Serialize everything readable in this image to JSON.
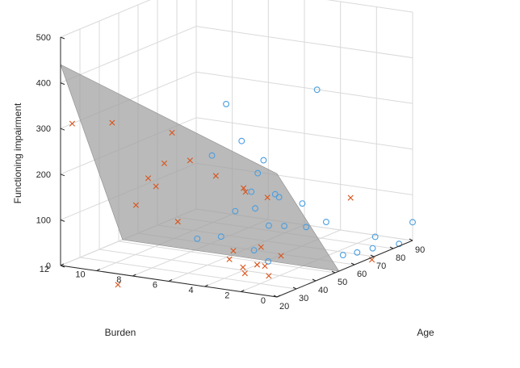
{
  "chart_data": {
    "type": "scatter3d",
    "xlabel": "Age",
    "ylabel": "Burden",
    "zlabel": "Functioning impairment",
    "x_ticks": [
      "20",
      "30",
      "40",
      "50",
      "60",
      "70",
      "80",
      "90"
    ],
    "y_ticks": [
      "0",
      "2",
      "4",
      "6",
      "8",
      "10",
      "12"
    ],
    "z_ticks": [
      "0",
      "100",
      "200",
      "300",
      "400",
      "500"
    ],
    "xlim": [
      20,
      90
    ],
    "ylim": [
      0,
      12
    ],
    "zlim": [
      0,
      500
    ],
    "grid": true,
    "plane": {
      "corners": [
        {
          "age": 20,
          "burden": 12,
          "z": 440
        },
        {
          "age": 20,
          "burden": 0,
          "z": 270
        },
        {
          "age": 52,
          "burden": 0,
          "z": 0
        },
        {
          "age": 52,
          "burden": 12,
          "z": 0
        }
      ]
    },
    "series": [
      {
        "marker": "circle",
        "color": "#4a9ee0",
        "points": [
          {
            "age": 31,
            "burden": 4,
            "z": 380
          },
          {
            "age": 50,
            "burden": 1,
            "z": 395
          },
          {
            "age": 33,
            "burden": 5,
            "z": 258
          },
          {
            "age": 39,
            "burden": 4,
            "z": 285
          },
          {
            "age": 41,
            "burden": 3,
            "z": 245
          },
          {
            "age": 38,
            "burden": 3,
            "z": 222
          },
          {
            "age": 44,
            "burden": 4,
            "z": 165
          },
          {
            "age": 47,
            "burden": 3,
            "z": 160
          },
          {
            "age": 46,
            "burden": 4,
            "z": 125
          },
          {
            "age": 49,
            "burden": 3,
            "z": 150
          },
          {
            "age": 45,
            "burden": 5,
            "z": 115
          },
          {
            "age": 47,
            "burden": 6,
            "z": 50
          },
          {
            "age": 44,
            "burden": 7,
            "z": 45
          },
          {
            "age": 53,
            "burden": 4,
            "z": 75
          },
          {
            "age": 61,
            "burden": 3,
            "z": 115
          },
          {
            "age": 61,
            "burden": 4,
            "z": 60
          },
          {
            "age": 64,
            "burden": 2,
            "z": 75
          },
          {
            "age": 63,
            "burden": 3,
            "z": 60
          },
          {
            "age": 83,
            "burden": 0,
            "z": 5
          },
          {
            "age": 64,
            "burden": 6,
            "z": -10
          },
          {
            "age": 62,
            "burden": 5,
            "z": -25
          },
          {
            "age": 80,
            "burden": 1,
            "z": 20
          },
          {
            "age": 80,
            "burden": 2,
            "z": -20
          },
          {
            "age": 82,
            "burden": 3,
            "z": -35
          },
          {
            "age": 88,
            "burden": 2,
            "z": -25
          },
          {
            "age": 90,
            "burden": 0,
            "z": 40
          }
        ]
      },
      {
        "marker": "cross",
        "color": "#d95319",
        "points": [
          {
            "age": 26,
            "burden": 12,
            "z": 300
          },
          {
            "age": 28,
            "burden": 10,
            "z": 310
          },
          {
            "age": 31,
            "burden": 7,
            "z": 300
          },
          {
            "age": 27,
            "burden": 7,
            "z": 240
          },
          {
            "age": 28,
            "burden": 8,
            "z": 200
          },
          {
            "age": 31,
            "burden": 6,
            "z": 245
          },
          {
            "age": 35,
            "burden": 5,
            "z": 210
          },
          {
            "age": 32,
            "burden": 8,
            "z": 175
          },
          {
            "age": 40,
            "burden": 4,
            "z": 180
          },
          {
            "age": 41,
            "burden": 4,
            "z": 170
          },
          {
            "age": 31,
            "burden": 9,
            "z": 130
          },
          {
            "age": 34,
            "burden": 7,
            "z": 100
          },
          {
            "age": 43,
            "burden": 3,
            "z": 160
          },
          {
            "age": 58,
            "burden": 0,
            "z": 150
          },
          {
            "age": 42,
            "burden": 5,
            "z": 15
          },
          {
            "age": 44,
            "burden": 5,
            "z": 30
          },
          {
            "age": 49,
            "burden": 4,
            "z": 35
          },
          {
            "age": 50,
            "burden": 3,
            "z": 20
          },
          {
            "age": 47,
            "burden": 4,
            "z": 0
          },
          {
            "age": 49,
            "burden": 5,
            "z": -15
          },
          {
            "age": 51,
            "burden": 4,
            "z": -10
          },
          {
            "age": 50,
            "burden": 5,
            "z": -30
          },
          {
            "age": 53,
            "burden": 4,
            "z": -35
          },
          {
            "age": 69,
            "burden": 0,
            "z": -5
          },
          {
            "age": 31,
            "burden": 10,
            "z": -50
          }
        ]
      }
    ]
  }
}
